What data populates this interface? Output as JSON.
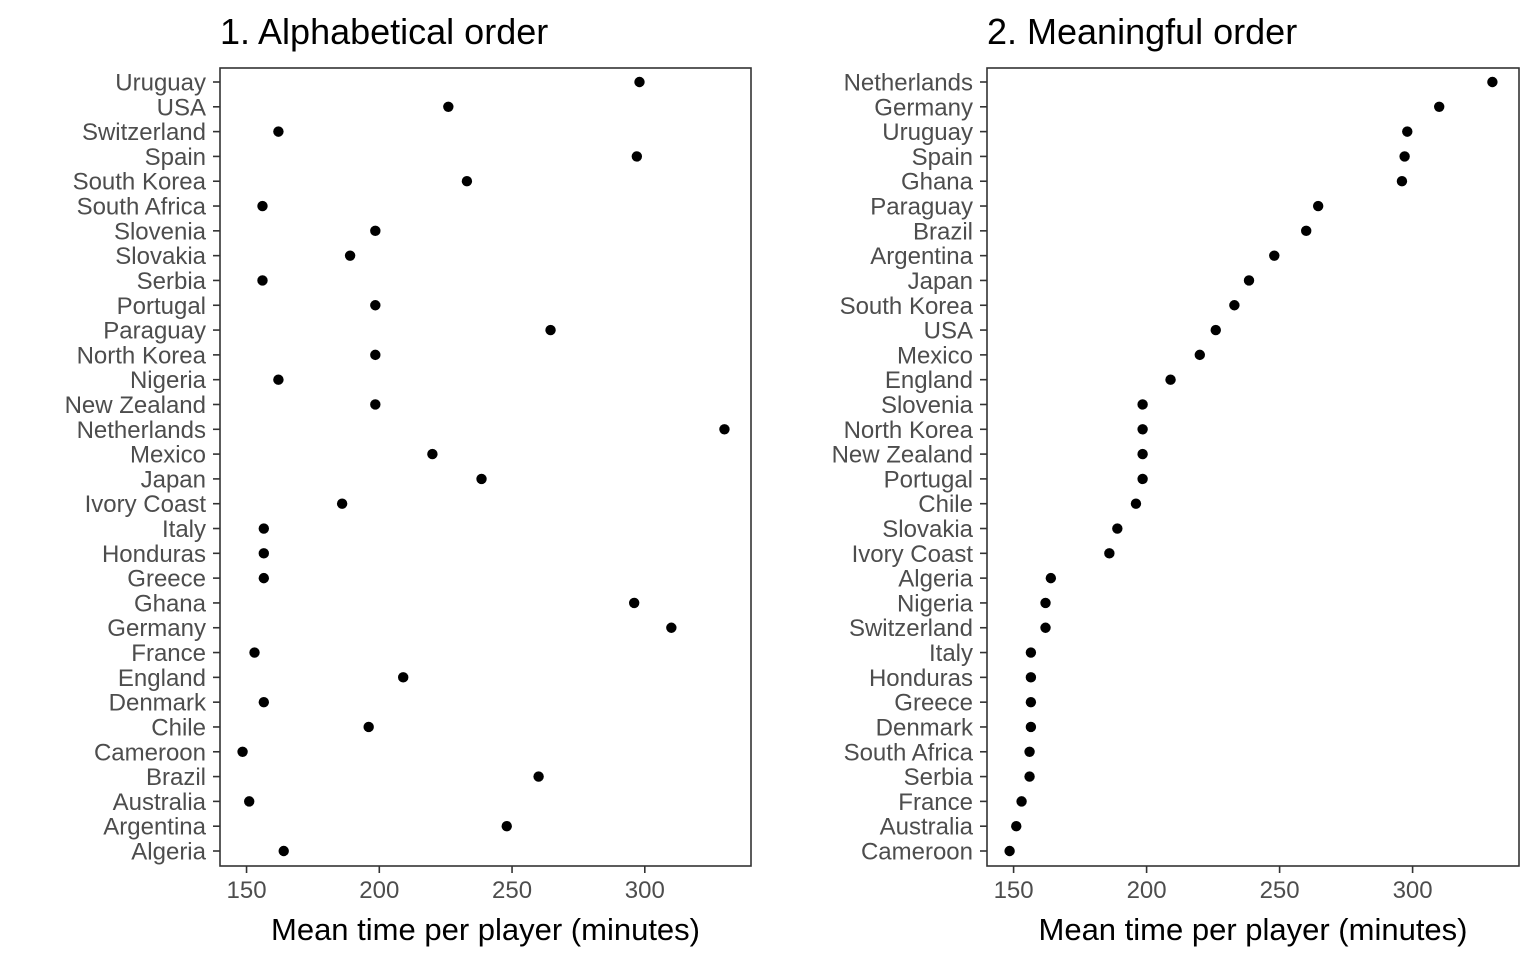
{
  "chart_data": [
    {
      "type": "scatter",
      "title": "1. Alphabetical order",
      "xlabel": "Mean time per player (minutes)",
      "ylabel": "",
      "xlim": [
        140,
        340
      ],
      "xticks": [
        150,
        200,
        250,
        300
      ],
      "categories": [
        "Algeria",
        "Argentina",
        "Australia",
        "Brazil",
        "Cameroon",
        "Chile",
        "Denmark",
        "England",
        "France",
        "Germany",
        "Ghana",
        "Greece",
        "Honduras",
        "Italy",
        "Ivory Coast",
        "Japan",
        "Mexico",
        "Netherlands",
        "New Zealand",
        "Nigeria",
        "North Korea",
        "Paraguay",
        "Portugal",
        "Serbia",
        "Slovakia",
        "Slovenia",
        "South Africa",
        "South Korea",
        "Spain",
        "Switzerland",
        "USA",
        "Uruguay"
      ],
      "values": [
        164,
        248,
        151,
        260,
        148.5,
        196,
        156.5,
        209,
        153,
        310,
        296,
        156.5,
        156.5,
        156.5,
        186,
        238.5,
        220,
        330,
        198.5,
        162,
        198.5,
        264.5,
        198.5,
        156,
        189,
        198.5,
        156,
        233,
        297,
        162,
        226,
        298
      ],
      "grid": false
    },
    {
      "type": "scatter",
      "title": "2. Meaningful order",
      "xlabel": "Mean time per player (minutes)",
      "ylabel": "",
      "xlim": [
        140,
        340
      ],
      "xticks": [
        150,
        200,
        250,
        300
      ],
      "categories": [
        "Cameroon",
        "Australia",
        "France",
        "Serbia",
        "South Africa",
        "Denmark",
        "Greece",
        "Honduras",
        "Italy",
        "Switzerland",
        "Nigeria",
        "Algeria",
        "Ivory Coast",
        "Slovakia",
        "Chile",
        "Portugal",
        "New Zealand",
        "North Korea",
        "Slovenia",
        "England",
        "Mexico",
        "USA",
        "South Korea",
        "Japan",
        "Argentina",
        "Brazil",
        "Paraguay",
        "Ghana",
        "Spain",
        "Uruguay",
        "Germany",
        "Netherlands"
      ],
      "values": [
        148.5,
        151,
        153,
        156,
        156,
        156.5,
        156.5,
        156.5,
        156.5,
        162,
        162,
        164,
        186,
        189,
        196,
        198.5,
        198.5,
        198.5,
        198.5,
        209,
        220,
        226,
        233,
        238.5,
        248,
        260,
        264.5,
        296,
        297,
        298,
        310,
        330
      ],
      "grid": false
    }
  ]
}
